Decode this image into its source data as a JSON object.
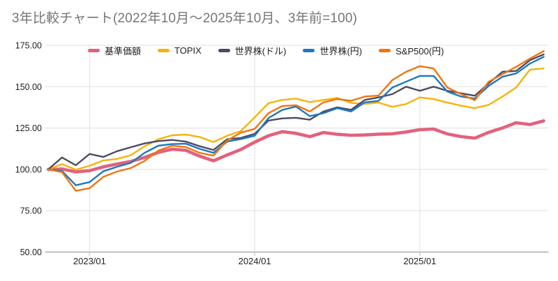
{
  "title": "3年比較チャート(2022年10月〜2025年10月、3年前=100)",
  "chart_data": {
    "type": "line",
    "x": [
      "2022/10",
      "2022/11",
      "2022/12",
      "2023/01",
      "2023/02",
      "2023/03",
      "2023/04",
      "2023/05",
      "2023/06",
      "2023/07",
      "2023/08",
      "2023/09",
      "2023/10",
      "2023/11",
      "2023/12",
      "2024/01",
      "2024/02",
      "2024/03",
      "2024/04",
      "2024/05",
      "2024/06",
      "2024/07",
      "2024/08",
      "2024/09",
      "2024/10",
      "2024/11",
      "2024/12",
      "2025/01",
      "2025/02",
      "2025/03",
      "2025/04",
      "2025/05",
      "2025/06",
      "2025/07",
      "2025/08",
      "2025/09",
      "2025/10"
    ],
    "x_tick_labels": [
      "2023/01",
      "2024/01",
      "2025/01"
    ],
    "y_tick_labels": [
      "50.00",
      "75.00",
      "100.00",
      "125.00",
      "150.00",
      "175.00"
    ],
    "ylim": [
      50,
      175
    ],
    "grid": true,
    "legend_position": "top",
    "series": [
      {
        "key": "fund-nav",
        "name": "基準価額",
        "color": "#e2627d",
        "line_width": 4.6,
        "values": [
          100,
          100.2,
          98.5,
          99.2,
          101.5,
          103.2,
          104.8,
          107.2,
          110.3,
          112.2,
          111.5,
          108,
          105.2,
          108.7,
          112,
          116.5,
          120.3,
          122.8,
          121.8,
          119.8,
          122.3,
          121.2,
          120.6,
          120.8,
          121.3,
          121.5,
          122.6,
          124,
          124.4,
          121.4,
          119.8,
          118.9,
          122.4,
          125,
          128.2,
          127.1,
          129.3
        ]
      },
      {
        "key": "topix",
        "name": "TOPIX",
        "color": "#f7b308",
        "line_width": 2.4,
        "values": [
          100,
          103.2,
          99.8,
          102.2,
          105.4,
          106.3,
          108.6,
          113.9,
          118.2,
          120.6,
          121,
          119.6,
          116.5,
          120.3,
          123.2,
          131.5,
          140,
          142,
          142.8,
          140.7,
          142,
          143.2,
          140.2,
          139.5,
          140.4,
          137.8,
          139.5,
          143.5,
          142.5,
          140.4,
          138.5,
          137,
          139,
          144,
          149.5,
          160.3,
          161
        ]
      },
      {
        "key": "world-usd",
        "name": "世界株(ドル)",
        "color": "#4c4b63",
        "line_width": 2.4,
        "values": [
          100,
          107.2,
          102.5,
          109.3,
          107.5,
          111,
          113.4,
          115.7,
          117.1,
          117.8,
          116.8,
          114,
          111.7,
          118.2,
          119,
          121.5,
          129.5,
          130.8,
          131.2,
          130,
          135,
          137.5,
          136,
          142,
          143.5,
          145.5,
          150,
          147.5,
          150,
          147.5,
          146,
          144.5,
          152,
          159,
          159.5,
          166,
          169.5
        ]
      },
      {
        "key": "world-jpy",
        "name": "世界株(円)",
        "color": "#1d78c1",
        "line_width": 2.4,
        "values": [
          100,
          99,
          90.4,
          92.3,
          98.8,
          101.6,
          103.9,
          110,
          114.3,
          115.3,
          115.5,
          112.4,
          110,
          116.8,
          118.3,
          120.3,
          131,
          135.9,
          138,
          132.2,
          134,
          137,
          135,
          140.5,
          141.4,
          149.5,
          153,
          156.5,
          156.5,
          147,
          144,
          142.8,
          150.5,
          156,
          158,
          164,
          168
        ]
      },
      {
        "key": "sp500-jpy",
        "name": "S&P500(円)",
        "color": "#f1750e",
        "line_width": 2.4,
        "values": [
          100,
          98.3,
          87,
          88.6,
          95.5,
          98.7,
          100.8,
          105.1,
          111.4,
          114.3,
          113.5,
          110,
          108.3,
          117.5,
          122.2,
          124.5,
          134,
          138.3,
          138.8,
          135,
          140.5,
          142.5,
          141.5,
          144,
          144.6,
          154,
          159,
          162.4,
          161,
          149.5,
          145.5,
          141.8,
          153,
          157.5,
          162,
          167,
          171.5
        ]
      }
    ]
  }
}
